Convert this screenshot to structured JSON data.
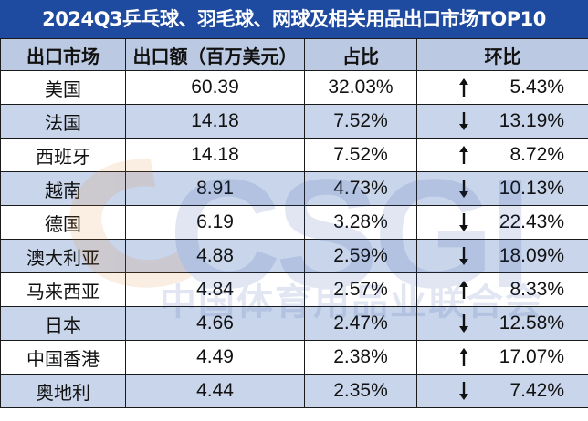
{
  "title": "2024Q3乒乓球、羽毛球、网球及相关用品出口市场TOP10",
  "headers": [
    "出口市场",
    "出口额（百万美元）",
    "占比",
    "环比"
  ],
  "rows": [
    {
      "market": "美国",
      "amount": "60.39",
      "share": "32.03%",
      "dir": "up",
      "change": "5.43%"
    },
    {
      "market": "法国",
      "amount": "14.18",
      "share": "7.52%",
      "dir": "down",
      "change": "13.19%"
    },
    {
      "market": "西班牙",
      "amount": "14.18",
      "share": "7.52%",
      "dir": "up",
      "change": "8.72%"
    },
    {
      "market": "越南",
      "amount": "8.91",
      "share": "4.73%",
      "dir": "down",
      "change": "10.13%"
    },
    {
      "market": "德国",
      "amount": "6.19",
      "share": "3.28%",
      "dir": "down",
      "change": "22.43%"
    },
    {
      "market": "澳大利亚",
      "amount": "4.88",
      "share": "2.59%",
      "dir": "down",
      "change": "18.09%"
    },
    {
      "market": "马来西亚",
      "amount": "4.84",
      "share": "2.57%",
      "dir": "up",
      "change": "8.33%"
    },
    {
      "market": "日本",
      "amount": "4.66",
      "share": "2.47%",
      "dir": "down",
      "change": "12.58%"
    },
    {
      "market": "中国香港",
      "amount": "4.49",
      "share": "2.38%",
      "dir": "up",
      "change": "17.07%"
    },
    {
      "market": "奥地利",
      "amount": "4.44",
      "share": "2.35%",
      "dir": "down",
      "change": "7.42%"
    }
  ],
  "watermark": {
    "logo": "CSGI",
    "org": "中国体育用品业联合会"
  },
  "colors": {
    "title_bg": "#1e4aa0",
    "header_bg": "#bcc9e2",
    "stripe": "#c9d5ea",
    "border": "#1a1a1a"
  }
}
